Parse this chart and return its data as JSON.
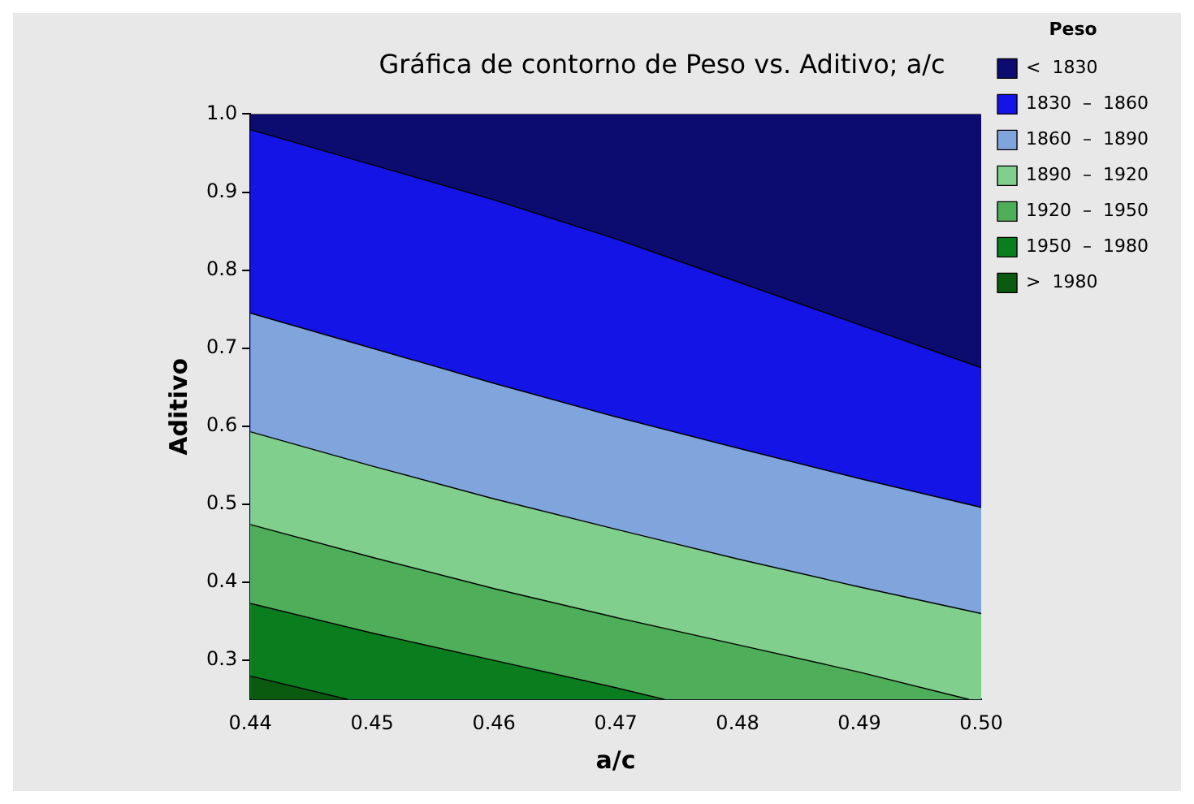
{
  "chart_data": {
    "type": "area",
    "title": "Gráfica de contorno de Peso vs. Aditivo; a/c",
    "xlabel": "a/c",
    "ylabel": "Aditivo",
    "legend_title": "Peso",
    "legend": "right",
    "marker": "none",
    "grid": false,
    "xlim": [
      0.44,
      0.5
    ],
    "xticks": [
      0.44,
      0.45,
      0.46,
      0.47,
      0.48,
      0.49,
      {
        "value": 0.5,
        "label": "0.50"
      }
    ],
    "ylim": [
      0.25,
      1.0
    ],
    "yticks": [
      0.3,
      0.4,
      0.5,
      0.6,
      0.7,
      0.8,
      0.9,
      {
        "value": 1.0,
        "label": "1.0"
      }
    ],
    "series": [
      {
        "name": "<  1830",
        "color": "#0c0c70",
        "x": [
          0.44,
          0.5
        ],
        "values": [
          1.0,
          1.0
        ]
      },
      {
        "name": "1830  –  1860",
        "color": "#1414e6",
        "x": [
          0.44,
          0.45,
          0.46,
          0.47,
          0.48,
          0.49,
          0.5
        ],
        "values": [
          0.98,
          0.935,
          0.89,
          0.84,
          0.785,
          0.73,
          0.675
        ]
      },
      {
        "name": "1860  –  1890",
        "color": "#7fa5dc",
        "x": [
          0.44,
          0.45,
          0.46,
          0.47,
          0.48,
          0.49,
          0.5
        ],
        "values": [
          0.745,
          0.7,
          0.655,
          0.612,
          0.572,
          0.533,
          0.496
        ]
      },
      {
        "name": "1890  –  1920",
        "color": "#80cf8c",
        "x": [
          0.44,
          0.45,
          0.46,
          0.47,
          0.48,
          0.49,
          0.5
        ],
        "values": [
          0.593,
          0.549,
          0.507,
          0.468,
          0.43,
          0.394,
          0.36
        ]
      },
      {
        "name": "1920  –  1950",
        "color": "#4fae5a",
        "x": [
          0.44,
          0.45,
          0.46,
          0.47,
          0.48,
          0.49,
          0.499
        ],
        "values": [
          0.474,
          0.432,
          0.392,
          0.355,
          0.32,
          0.285,
          0.25
        ]
      },
      {
        "name": "1950  –  1980",
        "color": "#0a7d1e",
        "x": [
          0.44,
          0.45,
          0.46,
          0.47,
          0.474
        ],
        "values": [
          0.373,
          0.335,
          0.3,
          0.265,
          0.25
        ]
      },
      {
        "name": ">  1980",
        "color": "#0a5a10",
        "x": [
          0.44,
          0.448
        ],
        "values": [
          0.28,
          0.25
        ]
      }
    ]
  }
}
